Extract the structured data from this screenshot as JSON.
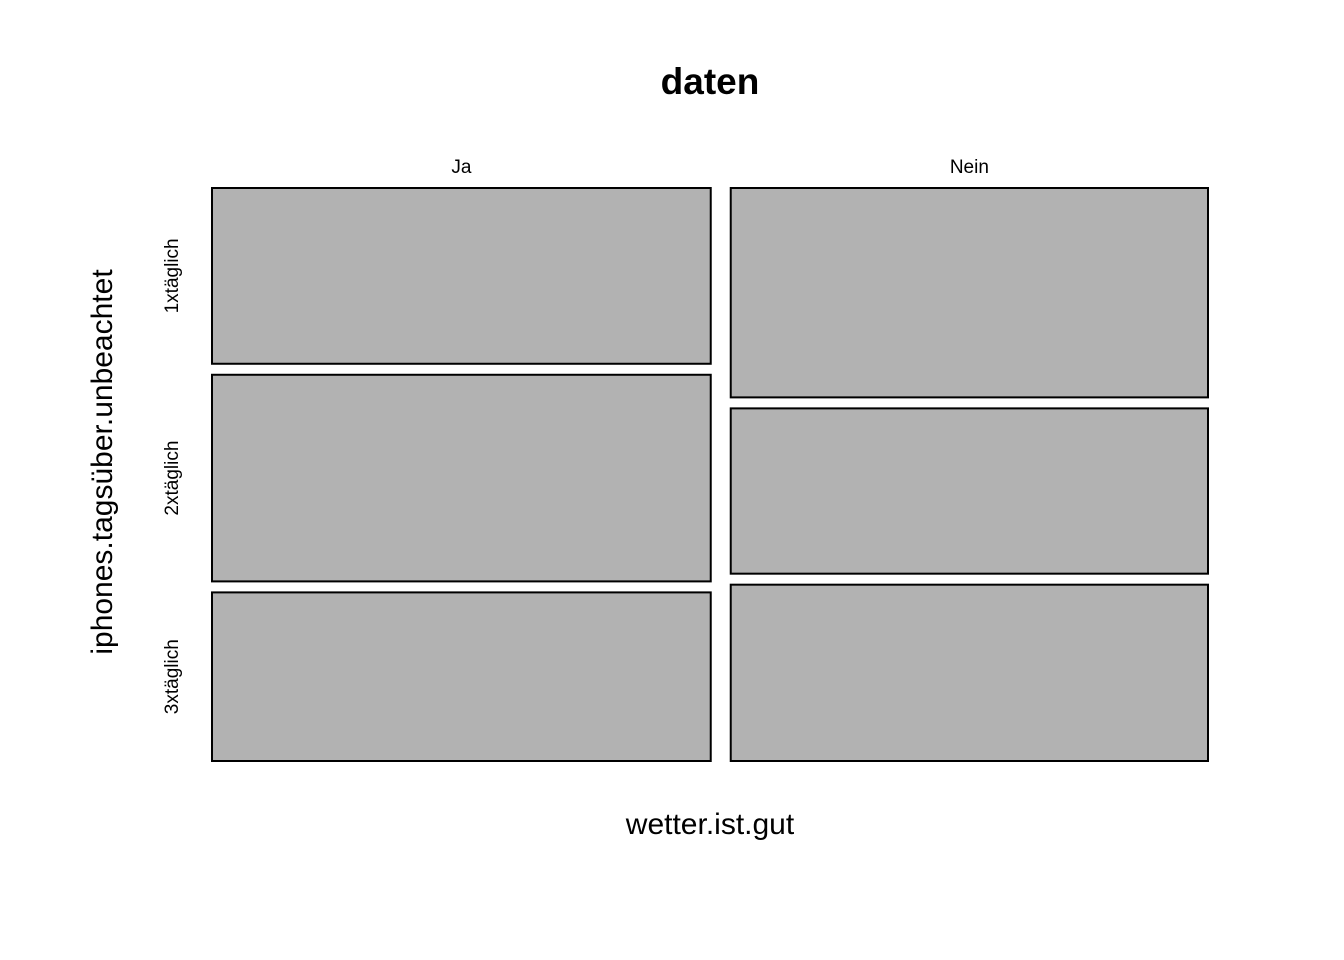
{
  "chart_data": {
    "type": "mosaic",
    "title": "daten",
    "xlabel": "wetter.ist.gut",
    "ylabel": "iphones.tagsüber.unbeachtet",
    "x_categories": [
      "Ja",
      "Nein"
    ],
    "y_categories": [
      "1xtäglich",
      "2xtäglich",
      "3xtäglich"
    ],
    "x_proportions": [
      0.511,
      0.489
    ],
    "cell_proportions": [
      {
        "x": "Ja",
        "values": [
          0.319,
          0.375,
          0.306
        ]
      },
      {
        "x": "Nein",
        "values": [
          0.38,
          0.3,
          0.32
        ]
      }
    ],
    "colors": {
      "tile_fill": "#b2b2b2",
      "tile_stroke": "#000000"
    }
  }
}
